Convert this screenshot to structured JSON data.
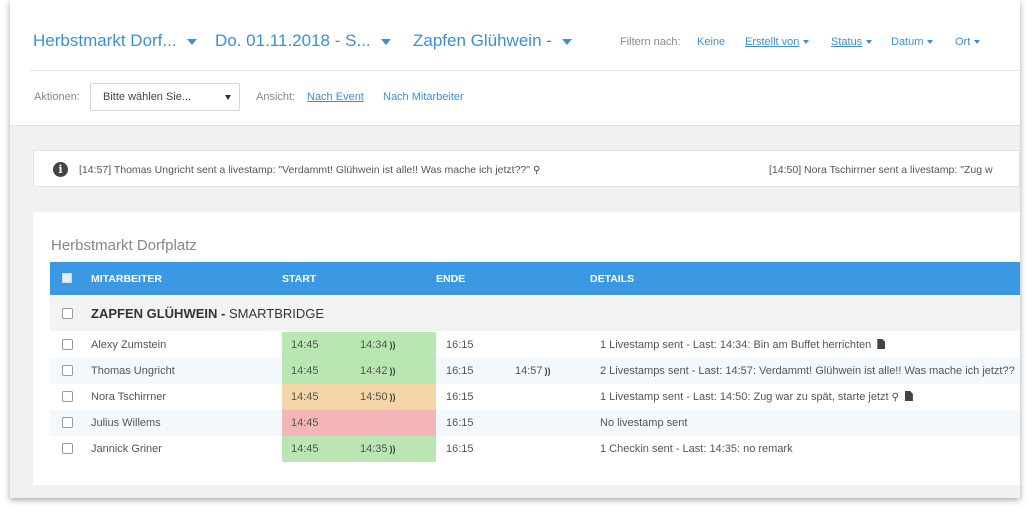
{
  "header": {
    "event_dropdown": "Herbstmarkt Dorf...",
    "date_dropdown": "Do. 01.11.2018 - S...",
    "station_dropdown": "Zapfen Glühwein -",
    "filter_label": "Filtern nach:",
    "filters": [
      {
        "label": "Keine",
        "underline": false,
        "caret": false
      },
      {
        "label": "Erstellt von",
        "underline": true,
        "caret": true
      },
      {
        "label": "Status",
        "underline": true,
        "caret": true
      },
      {
        "label": "Datum",
        "underline": false,
        "caret": true
      },
      {
        "label": "Ort",
        "underline": false,
        "caret": true
      }
    ],
    "actions_label": "Aktionen:",
    "actions_select": "Bitte wählen Sie...",
    "view_label": "Ansicht:",
    "view_links": [
      {
        "label": "Nach Event",
        "active": true
      },
      {
        "label": "Nach Mitarbeiter",
        "active": false
      }
    ]
  },
  "ticker": {
    "items": [
      "[14:57] Thomas Ungricht sent a livestamp: \"Verdammt! Glühwein ist alle!! Was mache ich jetzt??\"",
      "[14:50] Nora Tschirrner sent a livestamp: \"Zug w"
    ]
  },
  "panel": {
    "title": "Herbstmarkt Dorfplatz",
    "columns": {
      "employee": "MITARBEITER",
      "start": "START",
      "end": "ENDE",
      "details": "DETAILS"
    },
    "group": {
      "name": "ZAPFEN GLÜHWEIN",
      "separator": " - ",
      "company": "SMARTBRIDGE"
    },
    "rows": [
      {
        "name": "Alexy Zumstein",
        "start": "14:45",
        "start_actual": "14:34",
        "end": "16:15",
        "end_actual": "",
        "details": "1 Livestamp sent - Last: 14:34: Bin am Buffet herrichten",
        "status": "green",
        "pin": false,
        "doc": true
      },
      {
        "name": "Thomas Ungricht",
        "start": "14:45",
        "start_actual": "14:42",
        "end": "16:15",
        "end_actual": "14:57",
        "details": "2 Livestamps sent - Last: 14:57: Verdammt! Glühwein ist alle!! Was mache ich jetzt??",
        "status": "green",
        "pin": false,
        "doc": false
      },
      {
        "name": "Nora Tschirrner",
        "start": "14:45",
        "start_actual": "14:50",
        "end": "16:15",
        "end_actual": "",
        "details": "1 Livestamp sent - Last: 14:50: Zug war zu spät, starte jetzt",
        "status": "orange",
        "pin": true,
        "doc": true
      },
      {
        "name": "Julius Willems",
        "start": "14:45",
        "start_actual": "",
        "end": "16:15",
        "end_actual": "",
        "details": "No livestamp sent",
        "status": "red",
        "pin": false,
        "doc": false
      },
      {
        "name": "Jannick Griner",
        "start": "14:45",
        "start_actual": "14:35",
        "end": "16:15",
        "end_actual": "",
        "details": "1 Checkin sent - Last: 14:35: no remark",
        "status": "green",
        "pin": false,
        "doc": false
      }
    ]
  }
}
